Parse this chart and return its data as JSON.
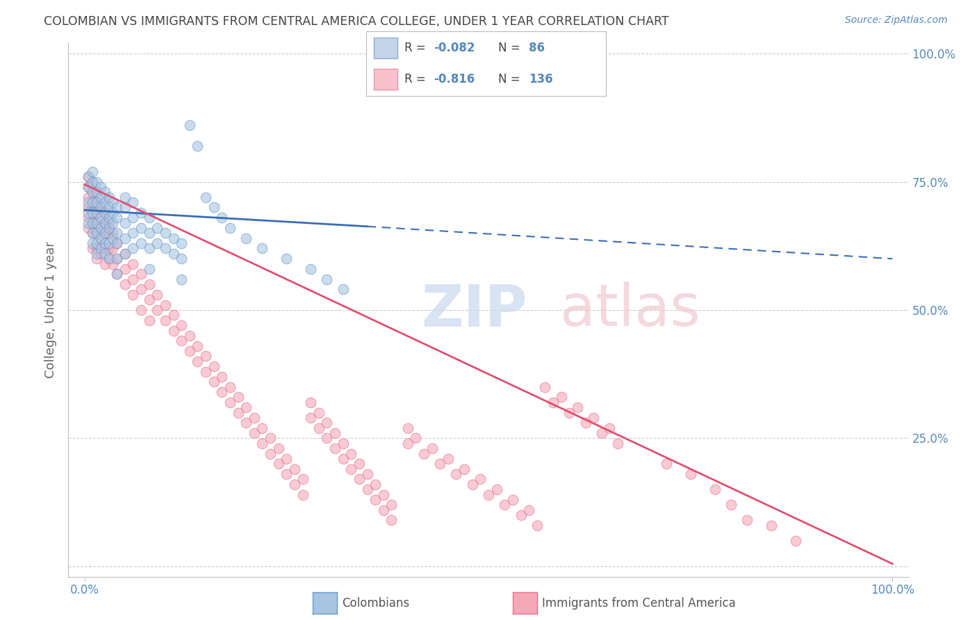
{
  "title": "COLOMBIAN VS IMMIGRANTS FROM CENTRAL AMERICA COLLEGE, UNDER 1 YEAR CORRELATION CHART",
  "source": "Source: ZipAtlas.com",
  "ylabel": "College, Under 1 year",
  "blue_color": "#A8C4E0",
  "pink_color": "#F4A8B8",
  "blue_edge_color": "#6699CC",
  "pink_edge_color": "#E87090",
  "blue_line_color": "#3A6DB5",
  "pink_line_color": "#E05070",
  "axis_color": "#5588BB",
  "grid_color": "#CCCCCC",
  "title_color": "#444444",
  "figsize": [
    14.06,
    8.92
  ],
  "dpi": 100,
  "xlim": [
    -0.02,
    1.02
  ],
  "ylim": [
    -0.02,
    1.02
  ],
  "blue_scatter": [
    [
      0.005,
      0.76
    ],
    [
      0.005,
      0.74
    ],
    [
      0.005,
      0.71
    ],
    [
      0.005,
      0.69
    ],
    [
      0.005,
      0.67
    ],
    [
      0.01,
      0.77
    ],
    [
      0.01,
      0.75
    ],
    [
      0.01,
      0.73
    ],
    [
      0.01,
      0.71
    ],
    [
      0.01,
      0.69
    ],
    [
      0.01,
      0.67
    ],
    [
      0.01,
      0.65
    ],
    [
      0.01,
      0.63
    ],
    [
      0.015,
      0.75
    ],
    [
      0.015,
      0.73
    ],
    [
      0.015,
      0.71
    ],
    [
      0.015,
      0.69
    ],
    [
      0.015,
      0.67
    ],
    [
      0.015,
      0.65
    ],
    [
      0.015,
      0.63
    ],
    [
      0.015,
      0.61
    ],
    [
      0.02,
      0.74
    ],
    [
      0.02,
      0.72
    ],
    [
      0.02,
      0.7
    ],
    [
      0.02,
      0.68
    ],
    [
      0.02,
      0.66
    ],
    [
      0.02,
      0.64
    ],
    [
      0.02,
      0.62
    ],
    [
      0.025,
      0.73
    ],
    [
      0.025,
      0.71
    ],
    [
      0.025,
      0.69
    ],
    [
      0.025,
      0.67
    ],
    [
      0.025,
      0.65
    ],
    [
      0.025,
      0.63
    ],
    [
      0.025,
      0.61
    ],
    [
      0.03,
      0.72
    ],
    [
      0.03,
      0.7
    ],
    [
      0.03,
      0.68
    ],
    [
      0.03,
      0.66
    ],
    [
      0.03,
      0.63
    ],
    [
      0.03,
      0.6
    ],
    [
      0.035,
      0.71
    ],
    [
      0.035,
      0.69
    ],
    [
      0.035,
      0.67
    ],
    [
      0.035,
      0.64
    ],
    [
      0.04,
      0.7
    ],
    [
      0.04,
      0.68
    ],
    [
      0.04,
      0.65
    ],
    [
      0.04,
      0.63
    ],
    [
      0.04,
      0.6
    ],
    [
      0.04,
      0.57
    ],
    [
      0.05,
      0.72
    ],
    [
      0.05,
      0.7
    ],
    [
      0.05,
      0.67
    ],
    [
      0.05,
      0.64
    ],
    [
      0.05,
      0.61
    ],
    [
      0.06,
      0.71
    ],
    [
      0.06,
      0.68
    ],
    [
      0.06,
      0.65
    ],
    [
      0.06,
      0.62
    ],
    [
      0.07,
      0.69
    ],
    [
      0.07,
      0.66
    ],
    [
      0.07,
      0.63
    ],
    [
      0.08,
      0.68
    ],
    [
      0.08,
      0.65
    ],
    [
      0.08,
      0.62
    ],
    [
      0.08,
      0.58
    ],
    [
      0.09,
      0.66
    ],
    [
      0.09,
      0.63
    ],
    [
      0.1,
      0.65
    ],
    [
      0.1,
      0.62
    ],
    [
      0.11,
      0.64
    ],
    [
      0.11,
      0.61
    ],
    [
      0.12,
      0.63
    ],
    [
      0.12,
      0.6
    ],
    [
      0.12,
      0.56
    ],
    [
      0.13,
      0.86
    ],
    [
      0.14,
      0.82
    ],
    [
      0.15,
      0.72
    ],
    [
      0.16,
      0.7
    ],
    [
      0.17,
      0.68
    ],
    [
      0.18,
      0.66
    ],
    [
      0.2,
      0.64
    ],
    [
      0.22,
      0.62
    ],
    [
      0.25,
      0.6
    ],
    [
      0.28,
      0.58
    ],
    [
      0.3,
      0.56
    ],
    [
      0.32,
      0.54
    ]
  ],
  "pink_scatter": [
    [
      0.005,
      0.76
    ],
    [
      0.005,
      0.74
    ],
    [
      0.005,
      0.72
    ],
    [
      0.005,
      0.7
    ],
    [
      0.005,
      0.68
    ],
    [
      0.005,
      0.66
    ],
    [
      0.01,
      0.75
    ],
    [
      0.01,
      0.73
    ],
    [
      0.01,
      0.71
    ],
    [
      0.01,
      0.69
    ],
    [
      0.01,
      0.67
    ],
    [
      0.01,
      0.65
    ],
    [
      0.01,
      0.62
    ],
    [
      0.015,
      0.73
    ],
    [
      0.015,
      0.71
    ],
    [
      0.015,
      0.69
    ],
    [
      0.015,
      0.67
    ],
    [
      0.015,
      0.65
    ],
    [
      0.015,
      0.62
    ],
    [
      0.015,
      0.6
    ],
    [
      0.02,
      0.71
    ],
    [
      0.02,
      0.69
    ],
    [
      0.02,
      0.66
    ],
    [
      0.02,
      0.64
    ],
    [
      0.02,
      0.61
    ],
    [
      0.025,
      0.69
    ],
    [
      0.025,
      0.67
    ],
    [
      0.025,
      0.65
    ],
    [
      0.025,
      0.62
    ],
    [
      0.025,
      0.59
    ],
    [
      0.03,
      0.67
    ],
    [
      0.03,
      0.65
    ],
    [
      0.03,
      0.62
    ],
    [
      0.03,
      0.6
    ],
    [
      0.035,
      0.65
    ],
    [
      0.035,
      0.62
    ],
    [
      0.035,
      0.59
    ],
    [
      0.04,
      0.63
    ],
    [
      0.04,
      0.6
    ],
    [
      0.04,
      0.57
    ],
    [
      0.05,
      0.61
    ],
    [
      0.05,
      0.58
    ],
    [
      0.05,
      0.55
    ],
    [
      0.06,
      0.59
    ],
    [
      0.06,
      0.56
    ],
    [
      0.06,
      0.53
    ],
    [
      0.07,
      0.57
    ],
    [
      0.07,
      0.54
    ],
    [
      0.07,
      0.5
    ],
    [
      0.08,
      0.55
    ],
    [
      0.08,
      0.52
    ],
    [
      0.08,
      0.48
    ],
    [
      0.09,
      0.53
    ],
    [
      0.09,
      0.5
    ],
    [
      0.1,
      0.51
    ],
    [
      0.1,
      0.48
    ],
    [
      0.11,
      0.49
    ],
    [
      0.11,
      0.46
    ],
    [
      0.12,
      0.47
    ],
    [
      0.12,
      0.44
    ],
    [
      0.13,
      0.45
    ],
    [
      0.13,
      0.42
    ],
    [
      0.14,
      0.43
    ],
    [
      0.14,
      0.4
    ],
    [
      0.15,
      0.41
    ],
    [
      0.15,
      0.38
    ],
    [
      0.16,
      0.39
    ],
    [
      0.16,
      0.36
    ],
    [
      0.17,
      0.37
    ],
    [
      0.17,
      0.34
    ],
    [
      0.18,
      0.35
    ],
    [
      0.18,
      0.32
    ],
    [
      0.19,
      0.33
    ],
    [
      0.19,
      0.3
    ],
    [
      0.2,
      0.31
    ],
    [
      0.2,
      0.28
    ],
    [
      0.21,
      0.29
    ],
    [
      0.21,
      0.26
    ],
    [
      0.22,
      0.27
    ],
    [
      0.22,
      0.24
    ],
    [
      0.23,
      0.25
    ],
    [
      0.23,
      0.22
    ],
    [
      0.24,
      0.23
    ],
    [
      0.24,
      0.2
    ],
    [
      0.25,
      0.21
    ],
    [
      0.25,
      0.18
    ],
    [
      0.26,
      0.19
    ],
    [
      0.26,
      0.16
    ],
    [
      0.27,
      0.17
    ],
    [
      0.27,
      0.14
    ],
    [
      0.28,
      0.32
    ],
    [
      0.28,
      0.29
    ],
    [
      0.29,
      0.3
    ],
    [
      0.29,
      0.27
    ],
    [
      0.3,
      0.28
    ],
    [
      0.3,
      0.25
    ],
    [
      0.31,
      0.26
    ],
    [
      0.31,
      0.23
    ],
    [
      0.32,
      0.24
    ],
    [
      0.32,
      0.21
    ],
    [
      0.33,
      0.22
    ],
    [
      0.33,
      0.19
    ],
    [
      0.34,
      0.2
    ],
    [
      0.34,
      0.17
    ],
    [
      0.35,
      0.18
    ],
    [
      0.35,
      0.15
    ],
    [
      0.36,
      0.16
    ],
    [
      0.36,
      0.13
    ],
    [
      0.37,
      0.14
    ],
    [
      0.37,
      0.11
    ],
    [
      0.38,
      0.12
    ],
    [
      0.38,
      0.09
    ],
    [
      0.4,
      0.27
    ],
    [
      0.4,
      0.24
    ],
    [
      0.41,
      0.25
    ],
    [
      0.42,
      0.22
    ],
    [
      0.43,
      0.23
    ],
    [
      0.44,
      0.2
    ],
    [
      0.45,
      0.21
    ],
    [
      0.46,
      0.18
    ],
    [
      0.47,
      0.19
    ],
    [
      0.48,
      0.16
    ],
    [
      0.49,
      0.17
    ],
    [
      0.5,
      0.14
    ],
    [
      0.51,
      0.15
    ],
    [
      0.52,
      0.12
    ],
    [
      0.53,
      0.13
    ],
    [
      0.54,
      0.1
    ],
    [
      0.55,
      0.11
    ],
    [
      0.56,
      0.08
    ],
    [
      0.57,
      0.35
    ],
    [
      0.58,
      0.32
    ],
    [
      0.59,
      0.33
    ],
    [
      0.6,
      0.3
    ],
    [
      0.61,
      0.31
    ],
    [
      0.62,
      0.28
    ],
    [
      0.63,
      0.29
    ],
    [
      0.64,
      0.26
    ],
    [
      0.65,
      0.27
    ],
    [
      0.66,
      0.24
    ],
    [
      0.72,
      0.2
    ],
    [
      0.75,
      0.18
    ],
    [
      0.78,
      0.15
    ],
    [
      0.8,
      0.12
    ],
    [
      0.82,
      0.09
    ],
    [
      0.85,
      0.08
    ],
    [
      0.88,
      0.05
    ]
  ],
  "blue_line_solid": [
    [
      0.0,
      0.695
    ],
    [
      0.35,
      0.663
    ]
  ],
  "blue_line_dashed": [
    [
      0.35,
      0.663
    ],
    [
      1.0,
      0.6
    ]
  ],
  "pink_line": [
    [
      0.0,
      0.745
    ],
    [
      1.0,
      0.005
    ]
  ]
}
